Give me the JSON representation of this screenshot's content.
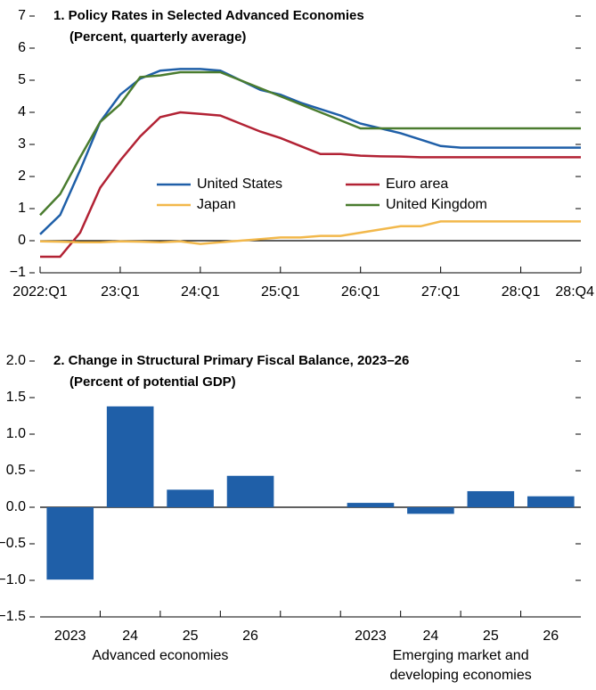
{
  "chart_data": [
    {
      "type": "line",
      "title": "1. Policy Rates in Selected Advanced Economies",
      "subtitle": "(Percent, quarterly average)",
      "categories": [
        "2022:Q1",
        null,
        null,
        null,
        "23:Q1",
        null,
        null,
        null,
        "24:Q1",
        null,
        null,
        null,
        "25:Q1",
        null,
        null,
        null,
        "26:Q1",
        null,
        null,
        null,
        "27:Q1",
        null,
        null,
        null,
        "28:Q1",
        null,
        null,
        "28:Q4"
      ],
      "series": [
        {
          "name": "United States",
          "color": "#1f5fa8",
          "values": [
            0.2,
            0.8,
            2.2,
            3.7,
            4.55,
            5.05,
            5.3,
            5.35,
            5.35,
            5.3,
            5.0,
            4.7,
            4.55,
            4.3,
            4.1,
            3.9,
            3.65,
            3.5,
            3.35,
            3.15,
            2.95,
            2.9,
            2.9,
            2.9,
            2.9,
            2.9,
            2.9,
            2.9
          ]
        },
        {
          "name": "Euro area",
          "color": "#b22234",
          "values": [
            -0.5,
            -0.5,
            0.25,
            1.65,
            2.5,
            3.25,
            3.85,
            4.0,
            3.95,
            3.9,
            3.65,
            3.4,
            3.2,
            2.95,
            2.7,
            2.7,
            2.65,
            2.63,
            2.62,
            2.6,
            2.6,
            2.6,
            2.6,
            2.6,
            2.6,
            2.6,
            2.6,
            2.6
          ]
        },
        {
          "name": "Japan",
          "color": "#f2b84b",
          "values": [
            -0.02,
            -0.03,
            -0.05,
            -0.05,
            -0.02,
            -0.03,
            -0.05,
            -0.02,
            -0.1,
            -0.05,
            0,
            0.05,
            0.1,
            0.1,
            0.15,
            0.15,
            0.25,
            0.35,
            0.45,
            0.45,
            0.6,
            0.6,
            0.6,
            0.6,
            0.6,
            0.6,
            0.6,
            0.6
          ]
        },
        {
          "name": "United Kingdom",
          "color": "#4a7c2f",
          "values": [
            0.8,
            1.45,
            2.6,
            3.7,
            4.25,
            5.1,
            5.15,
            5.25,
            5.25,
            5.25,
            5.0,
            4.75,
            4.5,
            4.25,
            4.0,
            3.75,
            3.5,
            3.5,
            3.5,
            3.5,
            3.5,
            3.5,
            3.5,
            3.5,
            3.5,
            3.5,
            3.5,
            3.5
          ]
        }
      ],
      "ylim": [
        -1,
        7
      ],
      "yticks": [
        {
          "value": -1,
          "label": "−1"
        },
        0,
        1,
        2,
        3,
        4,
        5,
        6,
        7
      ]
    },
    {
      "type": "bar",
      "title": "2. Change in Structural Primary Fiscal Balance, 2023–26",
      "subtitle": "(Percent of potential GDP)",
      "categories": [
        "2023",
        "24",
        "25",
        "26",
        null,
        "2023",
        "24",
        "25",
        "26"
      ],
      "values": [
        -0.99,
        1.38,
        0.24,
        0.43,
        null,
        0.06,
        -0.09,
        0.22,
        0.15
      ],
      "color": "#1f5fa8",
      "group_labels": [
        "Advanced economies",
        "Emerging market and developing economies"
      ],
      "ylim": [
        -1.5,
        2.0
      ],
      "yticks": [
        {
          "value": -1.5,
          "label": "−1.5"
        },
        {
          "value": -1.0,
          "label": "−1.0"
        },
        {
          "value": -0.5,
          "label": "−0.5"
        },
        {
          "value": 0,
          "label": "0.0"
        },
        0.5,
        {
          "value": 1.0,
          "label": "1.0"
        },
        1.5,
        {
          "value": 2.0,
          "label": "2.0"
        }
      ]
    }
  ]
}
